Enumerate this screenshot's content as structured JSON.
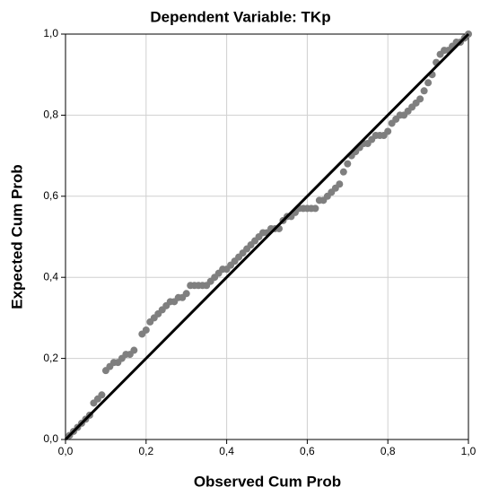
{
  "chart_data": {
    "type": "scatter",
    "title": "Dependent Variable: TKp",
    "xlabel": "Observed Cum Prob",
    "ylabel": "Expected Cum Prob",
    "x": [
      0.01,
      0.02,
      0.03,
      0.04,
      0.05,
      0.06,
      0.07,
      0.08,
      0.09,
      0.1,
      0.11,
      0.12,
      0.13,
      0.14,
      0.15,
      0.16,
      0.17,
      0.19,
      0.2,
      0.21,
      0.22,
      0.23,
      0.24,
      0.25,
      0.26,
      0.27,
      0.28,
      0.29,
      0.3,
      0.31,
      0.32,
      0.33,
      0.34,
      0.35,
      0.36,
      0.37,
      0.38,
      0.39,
      0.4,
      0.41,
      0.42,
      0.43,
      0.44,
      0.45,
      0.46,
      0.47,
      0.48,
      0.49,
      0.5,
      0.51,
      0.52,
      0.53,
      0.54,
      0.55,
      0.56,
      0.57,
      0.58,
      0.59,
      0.6,
      0.61,
      0.62,
      0.63,
      0.64,
      0.65,
      0.66,
      0.67,
      0.68,
      0.69,
      0.7,
      0.71,
      0.72,
      0.73,
      0.74,
      0.75,
      0.76,
      0.77,
      0.78,
      0.79,
      0.8,
      0.81,
      0.82,
      0.83,
      0.84,
      0.85,
      0.86,
      0.87,
      0.88,
      0.89,
      0.9,
      0.91,
      0.92,
      0.93,
      0.94,
      0.95,
      0.96,
      0.97,
      0.98,
      0.99,
      1.0
    ],
    "values": [
      0.01,
      0.02,
      0.03,
      0.04,
      0.05,
      0.06,
      0.09,
      0.1,
      0.11,
      0.17,
      0.18,
      0.19,
      0.19,
      0.2,
      0.21,
      0.21,
      0.22,
      0.26,
      0.27,
      0.29,
      0.3,
      0.31,
      0.32,
      0.33,
      0.34,
      0.34,
      0.35,
      0.35,
      0.36,
      0.38,
      0.38,
      0.38,
      0.38,
      0.38,
      0.39,
      0.4,
      0.41,
      0.42,
      0.42,
      0.43,
      0.44,
      0.45,
      0.46,
      0.47,
      0.48,
      0.49,
      0.5,
      0.51,
      0.51,
      0.52,
      0.52,
      0.52,
      0.54,
      0.55,
      0.55,
      0.56,
      0.57,
      0.57,
      0.57,
      0.57,
      0.57,
      0.59,
      0.59,
      0.6,
      0.61,
      0.62,
      0.63,
      0.66,
      0.68,
      0.7,
      0.71,
      0.72,
      0.73,
      0.73,
      0.74,
      0.75,
      0.75,
      0.75,
      0.76,
      0.78,
      0.79,
      0.8,
      0.8,
      0.81,
      0.82,
      0.83,
      0.84,
      0.86,
      0.88,
      0.9,
      0.93,
      0.95,
      0.96,
      0.96,
      0.97,
      0.98,
      0.98,
      0.99,
      1.0
    ],
    "color": "#7f7f7f",
    "line_color": "#000000",
    "xlim": [
      0,
      1
    ],
    "ylim": [
      0,
      1
    ],
    "xticks": [
      {
        "value": 0,
        "label": "0,0"
      },
      {
        "value": 0.2,
        "label": "0,2"
      },
      {
        "value": 0.4,
        "label": "0,4"
      },
      {
        "value": 0.6,
        "label": "0,6"
      },
      {
        "value": 0.8,
        "label": "0,8"
      },
      {
        "value": 1,
        "label": "1,0"
      }
    ],
    "yticks": [
      {
        "value": 0,
        "label": "0,0"
      },
      {
        "value": 0.2,
        "label": "0,2"
      },
      {
        "value": 0.4,
        "label": "0,4"
      },
      {
        "value": 0.6,
        "label": "0,6"
      },
      {
        "value": 0.8,
        "label": "0,8"
      },
      {
        "value": 1,
        "label": "1,0"
      }
    ],
    "grid": true
  }
}
